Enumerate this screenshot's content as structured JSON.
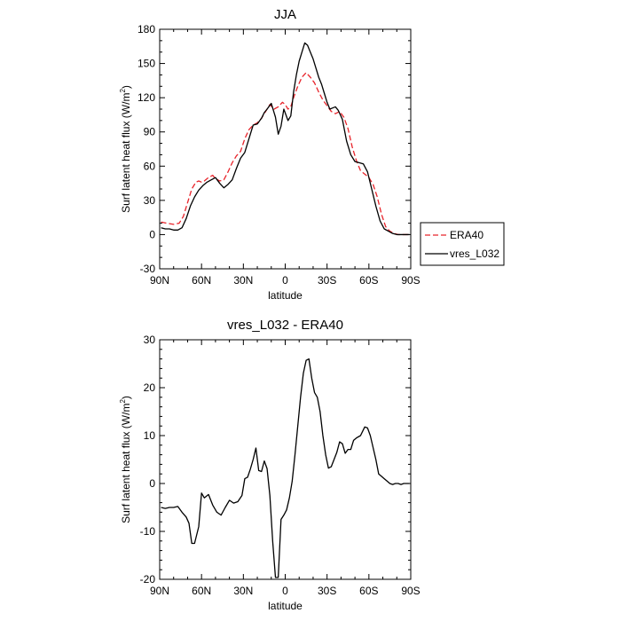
{
  "chart_data": [
    {
      "type": "line",
      "title": "JJA",
      "xlabel": "latitude",
      "ylabel_main": "Surf latent heat flux (W/m",
      "ylabel_sup": "2",
      "ylabel_close": ")",
      "xlim": [
        90,
        -90
      ],
      "ylim": [
        -30,
        180
      ],
      "xticks": [
        90,
        60,
        30,
        0,
        -30,
        -60,
        -90
      ],
      "xtick_labels": [
        "90N",
        "60N",
        "30N",
        "0",
        "30S",
        "60S",
        "90S"
      ],
      "yticks": [
        -30,
        0,
        30,
        60,
        90,
        120,
        150,
        180
      ],
      "ytick_labels": [
        "-30",
        "0",
        "30",
        "60",
        "90",
        "120",
        "150",
        "180"
      ],
      "grid": false,
      "legend": "right",
      "series": [
        {
          "name": "ERA40",
          "color": "#e8242b",
          "dash": true,
          "x": [
            89,
            85,
            80,
            76,
            73,
            70,
            67,
            64,
            62,
            60,
            58,
            55,
            52,
            50,
            47,
            44,
            41,
            38,
            35,
            32,
            29,
            26,
            23,
            20,
            17,
            14,
            11,
            8,
            5,
            2,
            0,
            -2,
            -4,
            -6,
            -9,
            -12,
            -15,
            -18,
            -21,
            -24,
            -27,
            -30,
            -33,
            -36,
            -39,
            -42,
            -45,
            -48,
            -51,
            -54,
            -57,
            -60,
            -63,
            -66,
            -69,
            -72,
            -75,
            -78,
            -81,
            -84,
            -87,
            -89
          ],
          "y": [
            11,
            10,
            9,
            10,
            16,
            28,
            40,
            46,
            47,
            46,
            47,
            50,
            52,
            49,
            47,
            48,
            55,
            63,
            69,
            73,
            84,
            92,
            96,
            98,
            102,
            108,
            114,
            110,
            112,
            116,
            114,
            110,
            112,
            120,
            130,
            138,
            142,
            138,
            133,
            125,
            118,
            113,
            108,
            106,
            108,
            103,
            93,
            77,
            65,
            56,
            53,
            50,
            44,
            33,
            18,
            7,
            3,
            1,
            0,
            0,
            0,
            0
          ]
        },
        {
          "name": "vres_L032",
          "color": "#000000",
          "dash": false,
          "x": [
            89,
            86,
            83,
            80,
            77,
            74,
            71,
            68,
            65,
            62,
            59,
            56,
            53,
            50,
            47,
            44,
            41,
            38,
            35,
            32,
            29,
            26,
            23,
            20,
            17,
            15,
            13,
            10,
            7,
            5,
            3,
            1,
            -2,
            -4,
            -6,
            -8,
            -10,
            -12,
            -14,
            -16,
            -18,
            -20,
            -22,
            -24,
            -26,
            -28,
            -30,
            -32,
            -34,
            -36,
            -38,
            -41,
            -44,
            -47,
            -50,
            -53,
            -56,
            -59,
            -62,
            -65,
            -68,
            -71,
            -74,
            -77,
            -80,
            -83,
            -86,
            -89
          ],
          "y": [
            6,
            5,
            5,
            4,
            4,
            6,
            14,
            25,
            33,
            39,
            43,
            46,
            48,
            50,
            45,
            41,
            44,
            48,
            58,
            67,
            72,
            84,
            96,
            97,
            102,
            107,
            110,
            115,
            103,
            88,
            95,
            110,
            100,
            104,
            125,
            140,
            152,
            160,
            168,
            166,
            160,
            154,
            146,
            138,
            132,
            124,
            116,
            110,
            111,
            112,
            109,
            101,
            82,
            70,
            64,
            63,
            62,
            55,
            40,
            25,
            12,
            5,
            3,
            1,
            0,
            0,
            0,
            0
          ]
        }
      ]
    },
    {
      "type": "line",
      "title": "vres_L032 - ERA40",
      "xlabel": "latitude",
      "ylabel_main": "Surf latent heat flux (W/m",
      "ylabel_sup": "2",
      "ylabel_close": ")",
      "xlim": [
        90,
        -90
      ],
      "ylim": [
        -20,
        30
      ],
      "xticks": [
        90,
        60,
        30,
        0,
        -30,
        -60,
        -90
      ],
      "xtick_labels": [
        "90N",
        "60N",
        "30N",
        "0",
        "30S",
        "60S",
        "90S"
      ],
      "yticks": [
        -20,
        -10,
        0,
        10,
        20,
        30
      ],
      "ytick_labels": [
        "-20",
        "-10",
        "0",
        "10",
        "20",
        "30"
      ],
      "grid": false,
      "series": [
        {
          "color": "#000000",
          "dash": false,
          "x": [
            89,
            86,
            83,
            80,
            77,
            74,
            71,
            69,
            67,
            65,
            62,
            60,
            58,
            55,
            52,
            49,
            46,
            43,
            40,
            37,
            34,
            31,
            29,
            27,
            25,
            23,
            21,
            19,
            17,
            15,
            13,
            11,
            9,
            7,
            5,
            3,
            1,
            -1,
            -3,
            -5,
            -7,
            -9,
            -11,
            -13,
            -15,
            -17,
            -19,
            -21,
            -23,
            -25,
            -27,
            -29,
            -31,
            -33,
            -35,
            -37,
            -39,
            -41,
            -43,
            -45,
            -47,
            -49,
            -51,
            -54,
            -57,
            -59,
            -61,
            -63,
            -65,
            -67,
            -69,
            -71,
            -73,
            -75,
            -77,
            -79,
            -81,
            -83,
            -85,
            -87,
            -89
          ],
          "y": [
            -5,
            -5.2,
            -5,
            -5,
            -4.8,
            -6,
            -7,
            -8.3,
            -12.5,
            -12.5,
            -9,
            -2,
            -3,
            -2.3,
            -4.5,
            -6,
            -6.6,
            -5,
            -3.5,
            -4.1,
            -3.8,
            -2.5,
            1,
            1.3,
            3,
            5,
            7.4,
            2.7,
            2.5,
            4.7,
            3.1,
            -2.5,
            -12,
            -19.6,
            -19.6,
            -7.5,
            -6.6,
            -5.5,
            -3,
            0.5,
            6,
            12,
            18,
            23,
            25.7,
            26,
            22,
            19,
            18,
            15,
            10,
            6,
            3.2,
            3.5,
            5,
            6.5,
            8.7,
            8.3,
            6.3,
            7.1,
            7.1,
            9,
            9.5,
            10,
            11.8,
            11.6,
            10,
            7.5,
            5,
            2,
            1.5,
            1,
            0.5,
            0,
            -0.2,
            0,
            0,
            -0.2,
            0,
            0,
            0
          ]
        }
      ]
    }
  ],
  "legend": {
    "entries": [
      "ERA40",
      "vres_L032"
    ]
  }
}
